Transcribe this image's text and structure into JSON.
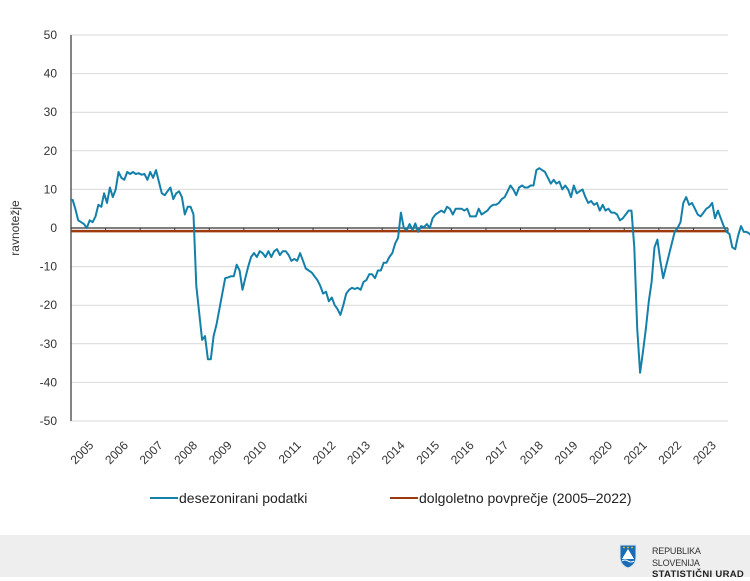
{
  "chart_data": {
    "type": "line",
    "title": "",
    "xlabel": "",
    "ylabel": "ravnotežje",
    "ylim": [
      -50,
      50
    ],
    "yticks": [
      50,
      40,
      30,
      20,
      10,
      0,
      -10,
      -20,
      -30,
      -40,
      -50
    ],
    "xticks": [
      "2005",
      "2006",
      "2007",
      "2008",
      "2009",
      "2010",
      "2011",
      "2012",
      "2013",
      "2014",
      "2015",
      "2016",
      "2017",
      "2018",
      "2019",
      "2020",
      "2021",
      "2022",
      "2023"
    ],
    "x_start": "2005-01",
    "x_frequency": "monthly",
    "grid": true,
    "legend_position": "bottom",
    "series": [
      {
        "name": "desezonirani podatki",
        "color": "#1380a9",
        "values": [
          7.5,
          5,
          2,
          1.5,
          1,
          0,
          2,
          1.5,
          3,
          6,
          5.5,
          9,
          6.5,
          10.5,
          8,
          10,
          14.5,
          13,
          12.5,
          14.5,
          14,
          14.5,
          14,
          14.2,
          13.8,
          14,
          12.5,
          14.5,
          13,
          15,
          12,
          9,
          8.5,
          9.5,
          10.5,
          7.5,
          9,
          9.5,
          8,
          3.5,
          5.5,
          5.5,
          3.5,
          -15,
          -22,
          -29,
          -28,
          -34,
          -34,
          -28,
          -25,
          -21,
          -17,
          -13,
          -12.8,
          -12.5,
          -12.5,
          -9.5,
          -11,
          -16,
          -13,
          -10,
          -7.5,
          -6.5,
          -7.5,
          -6,
          -6.5,
          -7.5,
          -6,
          -7.5,
          -6,
          -5.5,
          -7,
          -6,
          -6,
          -7,
          -8.5,
          -8,
          -8.5,
          -6.5,
          -8.5,
          -10.5,
          -11,
          -11.5,
          -12.5,
          -13.5,
          -15,
          -17,
          -16.5,
          -19,
          -18,
          -20,
          -21,
          -22.5,
          -20,
          -17,
          -16,
          -15.5,
          -15.8,
          -15.5,
          -16,
          -14,
          -13.5,
          -12,
          -12,
          -13,
          -11,
          -11,
          -9,
          -9,
          -7.5,
          -6.5,
          -4,
          -2.5,
          4,
          0,
          -0.5,
          1,
          -0.5,
          1.2,
          -1,
          0.5,
          0.2,
          1,
          0,
          2.5,
          3.5,
          4,
          4.5,
          4,
          5.5,
          5,
          3.5,
          5,
          5,
          5,
          4.5,
          5,
          3,
          3,
          3,
          5,
          3.5,
          4,
          4.5,
          5.5,
          6,
          6,
          6.5,
          7.5,
          8,
          9.5,
          11,
          10,
          8.5,
          10.5,
          11,
          10.5,
          10.5,
          11,
          11,
          15,
          15.5,
          15,
          14.5,
          13,
          11.5,
          12.5,
          11.5,
          12,
          10,
          11,
          10,
          8,
          11,
          9,
          9.5,
          10,
          8,
          6.5,
          7,
          6,
          6.5,
          4.5,
          6,
          4.5,
          5,
          4,
          4,
          3.5,
          2,
          2.5,
          3.5,
          4.5,
          4.5,
          -5,
          -26,
          -37.5,
          -32,
          -26,
          -19,
          -14,
          -5,
          -3,
          -8.5,
          -13,
          -10,
          -7,
          -4,
          -1,
          0,
          1.5,
          6.5,
          8,
          6,
          6.5,
          5,
          3.5,
          3,
          4,
          5,
          5.5,
          6.5,
          2.5,
          4.5,
          2.5,
          0.5,
          -1,
          -1.5,
          -5,
          -5.5,
          -2,
          0.5,
          -1,
          -1,
          -1.5,
          -2.3
        ]
      },
      {
        "name": "dolgoletno povprečje (2005–2022)",
        "color": "#9b3a0c",
        "value": -0.8
      }
    ]
  },
  "legend": {
    "items": [
      {
        "label": "desezonirani podatki",
        "color": "#1380a9"
      },
      {
        "label": "dolgoletno povprečje (2005–2022)",
        "color": "#9b3a0c"
      }
    ]
  },
  "footer": {
    "line1": "REPUBLIKA SLOVENIJA",
    "line2": "STATISTIČNI URAD",
    "logo": "slovenia-coat-of-arms-icon"
  }
}
